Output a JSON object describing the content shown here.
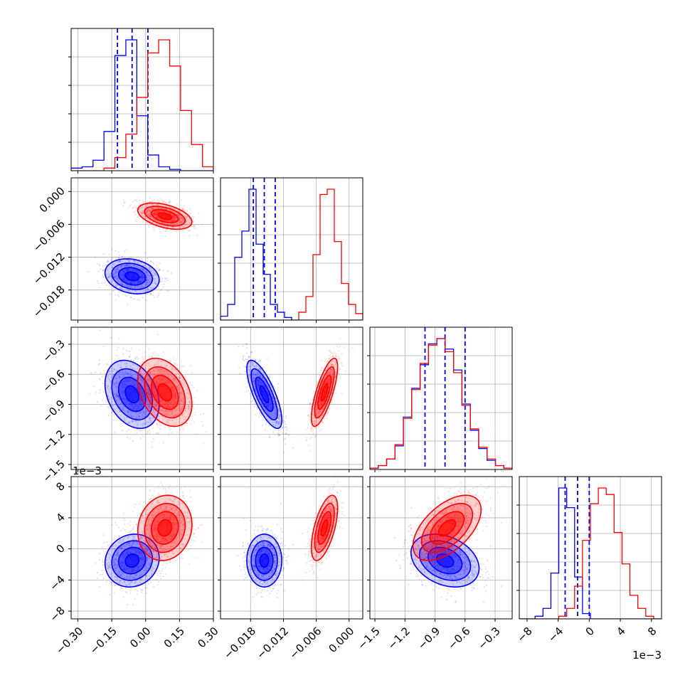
{
  "chart_data": {
    "type": "corner",
    "parameters": 4,
    "tick_labels": {
      "x0": [
        "−0.30",
        "−0.15",
        "0.00",
        "0.15",
        "0.30"
      ],
      "x1": [
        "−0.018",
        "−0.012",
        "−0.006",
        "0.000"
      ],
      "x2": [
        "−1.5",
        "−1.2",
        "−0.9",
        "−0.6",
        "−0.3"
      ],
      "x3": [
        "−8",
        "−4",
        "0",
        "4",
        "8"
      ],
      "y1": [
        "0.000",
        "−0.006",
        "−0.012",
        "−0.018"
      ],
      "y2": [
        "−0.3",
        "−0.6",
        "−0.9",
        "−1.2",
        "−1.5"
      ],
      "y3": [
        "8",
        "4",
        "0",
        "−4",
        "−8"
      ]
    },
    "offset_labels": {
      "y3": "1e−3",
      "x3": "1e−3"
    },
    "ranges": {
      "p0": [
        -0.33,
        0.3
      ],
      "p1": [
        -0.0235,
        0.0025
      ],
      "p2": [
        -1.55,
        -0.13
      ],
      "p3": [
        -0.009,
        0.0093
      ]
    },
    "axis_labels": [],
    "grid": true,
    "series": [
      {
        "color": "#0000ff",
        "mean": [
          -0.06,
          -0.0155,
          -0.8,
          -0.0015
        ],
        "std": [
          0.06,
          0.0016,
          0.17,
          0.0017
        ],
        "corr": [
          [
            1.0,
            -0.2,
            -0.3,
            0.1
          ],
          [
            -0.2,
            1.0,
            -0.75,
            0.0
          ],
          [
            -0.3,
            -0.75,
            1.0,
            -0.3
          ],
          [
            0.1,
            0.0,
            -0.3,
            1.0
          ]
        ],
        "hist": [
          [
            2,
            3,
            8,
            30,
            88,
            100,
            42,
            12,
            3,
            1,
            0,
            0,
            0
          ],
          [
            3,
            12,
            48,
            68,
            100,
            58,
            35,
            12,
            6,
            2,
            0,
            0,
            0,
            0,
            0,
            0,
            0,
            0,
            0,
            0
          ],
          [
            1,
            3,
            8,
            18,
            40,
            62,
            80,
            96,
            100,
            92,
            76,
            50,
            30,
            16,
            7,
            3,
            1
          ],
          [
            0,
            0,
            2,
            8,
            35,
            100,
            85,
            32,
            4,
            0,
            0,
            0,
            0,
            0,
            0,
            0,
            0,
            0
          ]
        ],
        "quantiles": [
          [
            -0.125,
            -0.06,
            0.01
          ],
          [
            -0.0175,
            -0.0155,
            -0.0135
          ],
          [
            -1.0,
            -0.8,
            -0.6
          ],
          [
            -0.0031,
            -0.0015,
            0.0
          ]
        ]
      },
      {
        "color": "#ff0000",
        "mean": [
          0.085,
          -0.0045,
          -0.78,
          0.0027
        ],
        "std": [
          0.06,
          0.0012,
          0.17,
          0.0021
        ],
        "corr": [
          [
            1.0,
            -0.45,
            -0.35,
            0.1
          ],
          [
            -0.45,
            1.0,
            0.75,
            0.6
          ],
          [
            -0.35,
            0.75,
            1.0,
            0.55
          ],
          [
            0.1,
            0.6,
            0.55,
            1.0
          ]
        ],
        "hist": [
          [
            0,
            0,
            0,
            2,
            10,
            28,
            56,
            90,
            100,
            80,
            46,
            20,
            3
          ],
          [
            0,
            0,
            0,
            0,
            0,
            0,
            0,
            0,
            0,
            0,
            0,
            6,
            18,
            50,
            96,
            100,
            60,
            28,
            12,
            5
          ],
          [
            1,
            3,
            8,
            19,
            39,
            61,
            81,
            95,
            100,
            90,
            74,
            49,
            31,
            17,
            8,
            3,
            1
          ],
          [
            0,
            0,
            0,
            0,
            0,
            2,
            8,
            25,
            60,
            88,
            100,
            95,
            66,
            42,
            18,
            8,
            2,
            0
          ]
        ]
      }
    ]
  }
}
